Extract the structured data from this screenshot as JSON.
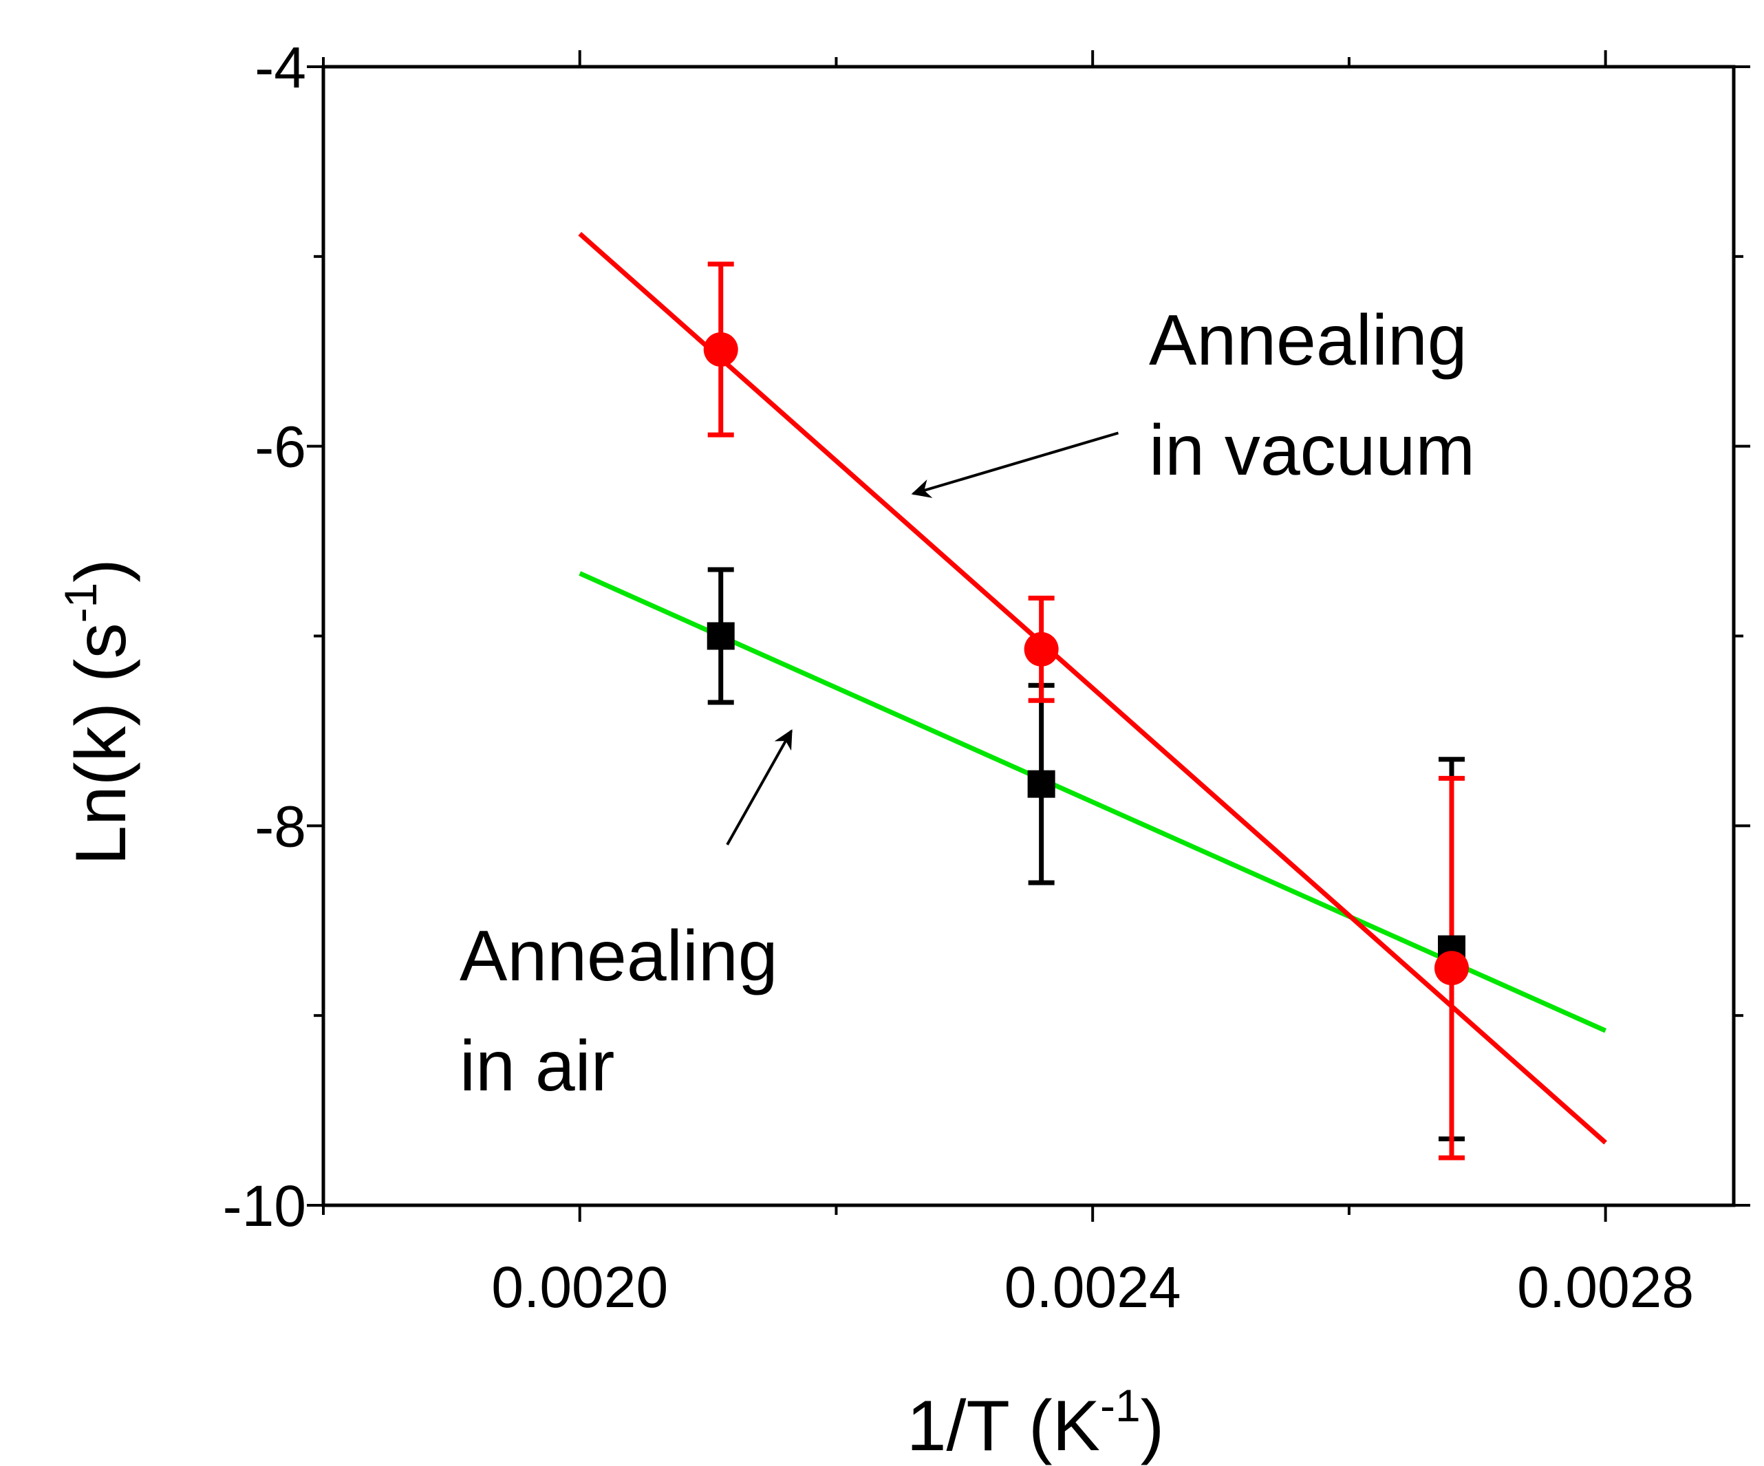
{
  "chart_data": {
    "type": "scatter",
    "xlabel": "1/T (K",
    "xlabel_sup": "-1",
    "xlabel_close": ")",
    "ylabel": "Ln(k) (s",
    "ylabel_sup": "-1",
    "ylabel_close": ")",
    "xlim": [
      0.0018,
      0.0029
    ],
    "ylim": [
      -10,
      -4
    ],
    "xticks": [
      0.002,
      0.0024,
      0.0028
    ],
    "xtick_labels": [
      "0.0020",
      "0.0024",
      "0.0028"
    ],
    "yticks": [
      -10,
      -8,
      -6,
      -4
    ],
    "ytick_labels": [
      "-10",
      "-8",
      "-6",
      "-4"
    ],
    "grid": false,
    "series": [
      {
        "name": "Annealing in air",
        "marker": "square",
        "color": "#000000",
        "points": [
          {
            "x": 0.00211,
            "y": -7.0,
            "err_low": 0.35,
            "err_high": 0.35
          },
          {
            "x": 0.00236,
            "y": -7.78,
            "err_low": 0.52,
            "err_high": 0.52
          },
          {
            "x": 0.00268,
            "y": -8.65,
            "err_low": 1.0,
            "err_high": 1.0
          }
        ],
        "fit": {
          "color": "#00e600",
          "x": [
            0.002,
            0.0028
          ],
          "y": [
            -6.67,
            -9.08
          ]
        }
      },
      {
        "name": "Annealing in vacuum",
        "marker": "circle",
        "color": "#ff0000",
        "points": [
          {
            "x": 0.00211,
            "y": -5.49,
            "err_low": 0.45,
            "err_high": 0.45
          },
          {
            "x": 0.00236,
            "y": -7.07,
            "err_low": 0.27,
            "err_high": 0.27
          },
          {
            "x": 0.00268,
            "y": -8.75,
            "err_low": 1.0,
            "err_high": 1.0
          }
        ],
        "fit": {
          "color": "#ff0000",
          "x": [
            0.002,
            0.0028
          ],
          "y": [
            -4.88,
            -9.67
          ]
        }
      }
    ],
    "annotations": [
      {
        "name": "vacuum-annotation",
        "lines": [
          "Annealing",
          "in vacuum"
        ],
        "arrow_from": [
          0.00242,
          -5.93
        ],
        "arrow_to": [
          0.00226,
          -6.25
        ]
      },
      {
        "name": "air-annotation",
        "lines": [
          "Annealing",
          "in air"
        ],
        "arrow_from": [
          0.002115,
          -8.1
        ],
        "arrow_to": [
          0.002165,
          -7.5
        ]
      }
    ]
  }
}
